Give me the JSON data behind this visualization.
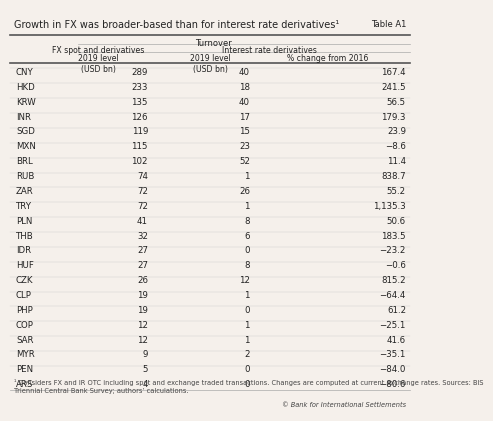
{
  "title": "Growth in FX was broader-based than for interest rate derivatives¹",
  "table_label": "Table A1",
  "col_group_header": "Turnover",
  "col1_header": "FX spot and derivatives",
  "col2_header": "Interest rate derivatives",
  "col1_sub": "2019 level\n(USD bn)",
  "col2_sub": "2019 level\n(USD bn)",
  "col3_sub": "% change from 2016",
  "rows": [
    [
      "CNY",
      "289",
      "40",
      "167.4"
    ],
    [
      "HKD",
      "233",
      "18",
      "241.5"
    ],
    [
      "KRW",
      "135",
      "40",
      "56.5"
    ],
    [
      "INR",
      "126",
      "17",
      "179.3"
    ],
    [
      "SGD",
      "119",
      "15",
      "23.9"
    ],
    [
      "MXN",
      "115",
      "23",
      "−8.6"
    ],
    [
      "BRL",
      "102",
      "52",
      "11.4"
    ],
    [
      "RUB",
      "74",
      "1",
      "838.7"
    ],
    [
      "ZAR",
      "72",
      "26",
      "55.2"
    ],
    [
      "TRY",
      "72",
      "1",
      "1,135.3"
    ],
    [
      "PLN",
      "41",
      "8",
      "50.6"
    ],
    [
      "THB",
      "32",
      "6",
      "183.5"
    ],
    [
      "IDR",
      "27",
      "0",
      "−23.2"
    ],
    [
      "HUF",
      "27",
      "8",
      "−0.6"
    ],
    [
      "CZK",
      "26",
      "12",
      "815.2"
    ],
    [
      "CLP",
      "19",
      "1",
      "−64.4"
    ],
    [
      "PHP",
      "19",
      "0",
      "61.2"
    ],
    [
      "COP",
      "12",
      "1",
      "−25.1"
    ],
    [
      "SAR",
      "12",
      "1",
      "41.6"
    ],
    [
      "MYR",
      "9",
      "2",
      "−35.1"
    ],
    [
      "PEN",
      "5",
      "0",
      "−84.0"
    ],
    [
      "ARS",
      "4",
      "0",
      "−80.6"
    ]
  ],
  "footnote": "¹ Considers FX and IR OTC including spot and exchange traded transactions. Changes are computed at current exchange rates. Sources: BIS\nTriennial Central Bank Survey; authors’ calculations.",
  "copyright": "© Bank for International Settlements",
  "bg_color": "#f5f0eb",
  "text_color": "#222222",
  "footnote_color": "#444444",
  "line_color_thick": "#555555",
  "line_color_thin": "#aaaaaa",
  "line_color_light": "#cccccc"
}
